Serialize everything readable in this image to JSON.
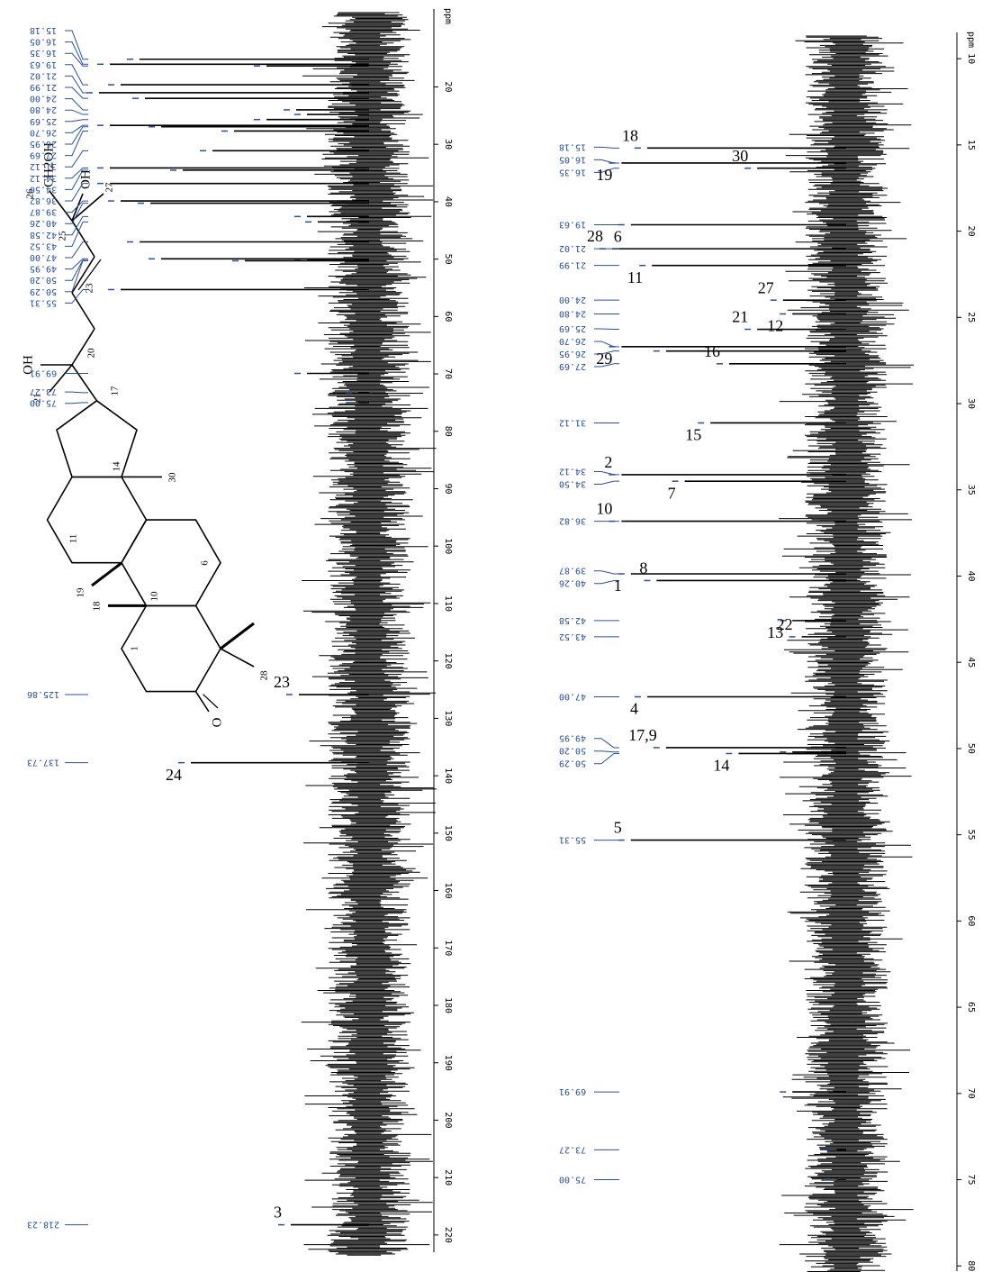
{
  "chart_data": [
    {
      "type": "spectrum",
      "axis_label": "ppm",
      "xlim": [
        8,
        223
      ],
      "xticks": [
        20,
        30,
        40,
        50,
        60,
        70,
        80,
        90,
        100,
        110,
        120,
        130,
        140,
        150,
        160,
        170,
        180,
        190,
        200,
        210,
        220
      ],
      "color": "#000000",
      "label_color": "#2850a0",
      "x": [
        15.18,
        16.05,
        16.35,
        19.63,
        21.02,
        21.99,
        24.0,
        24.8,
        25.69,
        26.7,
        26.95,
        27.69,
        31.12,
        34.12,
        34.5,
        36.82,
        39.87,
        40.26,
        42.58,
        43.52,
        47.0,
        49.95,
        50.2,
        50.29,
        55.31,
        69.91,
        73.27,
        75.0,
        125.86,
        137.73,
        218.23
      ],
      "x_labels": [
        "15.18",
        "16.05",
        "16.35",
        "19.63",
        "21.02",
        "21.99",
        "24.00",
        "24.80",
        "25.69",
        "26.70",
        "26.95",
        "27.69",
        "31.12",
        "34.12",
        "34.50",
        "36.82",
        "39.87",
        "40.26",
        "42.58",
        "43.52",
        "47.00",
        "49.95",
        "50.20",
        "50.29",
        "55.31",
        "69.91",
        "73.27",
        "75.00",
        "125.86",
        "137.73",
        "218.23"
      ],
      "values": [
        85,
        96,
        38,
        92,
        100,
        83,
        27,
        23,
        38,
        96,
        77,
        50,
        58,
        96,
        69,
        96,
        92,
        81,
        23,
        19,
        85,
        77,
        23,
        46,
        92,
        23,
        4,
        4,
        26,
        66,
        29
      ],
      "annotations": [
        {
          "text": "23",
          "x": 125.86
        },
        {
          "text": "24",
          "x": 137.73
        },
        {
          "text": "3",
          "x": 218.23
        }
      ]
    },
    {
      "type": "spectrum",
      "axis_label": "ppm",
      "xlim": [
        9,
        80.3
      ],
      "xticks": [
        10,
        15,
        20,
        25,
        30,
        35,
        40,
        45,
        50,
        55,
        60,
        65,
        70,
        75,
        80
      ],
      "color": "#000000",
      "label_color": "#2850a0",
      "x": [
        15.18,
        16.05,
        16.35,
        19.63,
        21.02,
        21.99,
        24.0,
        24.8,
        25.69,
        26.7,
        26.95,
        27.69,
        31.12,
        34.12,
        34.5,
        36.82,
        39.87,
        40.26,
        42.58,
        43.52,
        47.0,
        49.95,
        50.2,
        50.29,
        55.31,
        69.91,
        73.27,
        75.0
      ],
      "x_labels": [
        "15.18",
        "16.05",
        "16.35",
        "19.63",
        "21.02",
        "21.99",
        "24.00",
        "24.80",
        "25.69",
        "26.70",
        "26.95",
        "27.69",
        "31.12",
        "34.12",
        "34.50",
        "36.82",
        "39.87",
        "40.26",
        "42.58",
        "43.52",
        "47.00",
        "49.95",
        "50.20",
        "50.29",
        "55.31",
        "69.91",
        "73.27",
        "75.00"
      ],
      "values": [
        85,
        96,
        38,
        92,
        100,
        83,
        27,
        23,
        38,
        96,
        77,
        50,
        58,
        96,
        69,
        96,
        92,
        81,
        23,
        19,
        85,
        77,
        23,
        46,
        92,
        23,
        4,
        4
      ],
      "annotations": [
        {
          "text": "18",
          "x": 15.18
        },
        {
          "text": "19",
          "x": 16.05
        },
        {
          "text": "30",
          "x": 16.35
        },
        {
          "text": "6",
          "x": 19.63
        },
        {
          "text": "28",
          "x": 21.02
        },
        {
          "text": "11",
          "x": 21.99
        },
        {
          "text": "27",
          "x": 24.0
        },
        {
          "text": "12",
          "x": 24.8
        },
        {
          "text": "21",
          "x": 25.69
        },
        {
          "text": "29",
          "x": 26.7
        },
        {
          "text": "16",
          "x": 27.69
        },
        {
          "text": "15",
          "x": 31.12
        },
        {
          "text": "2",
          "x": 34.12
        },
        {
          "text": "7",
          "x": 34.5
        },
        {
          "text": "10",
          "x": 36.82
        },
        {
          "text": "1",
          "x": 39.87
        },
        {
          "text": "8",
          "x": 40.26
        },
        {
          "text": "13",
          "x": 42.58
        },
        {
          "text": "22",
          "x": 43.52
        },
        {
          "text": "4",
          "x": 47.0
        },
        {
          "text": "17,9",
          "x": 49.95
        },
        {
          "text": "14",
          "x": 50.29
        },
        {
          "text": "5",
          "x": 55.31
        }
      ]
    }
  ],
  "structure": {
    "labels": [
      "26",
      "CH2OH",
      "OH",
      "25",
      "27",
      "23",
      "OH",
      "20",
      "17",
      "21",
      "14",
      "30",
      "19",
      "18",
      "11",
      "10",
      "6",
      "1",
      "28",
      "O"
    ]
  }
}
